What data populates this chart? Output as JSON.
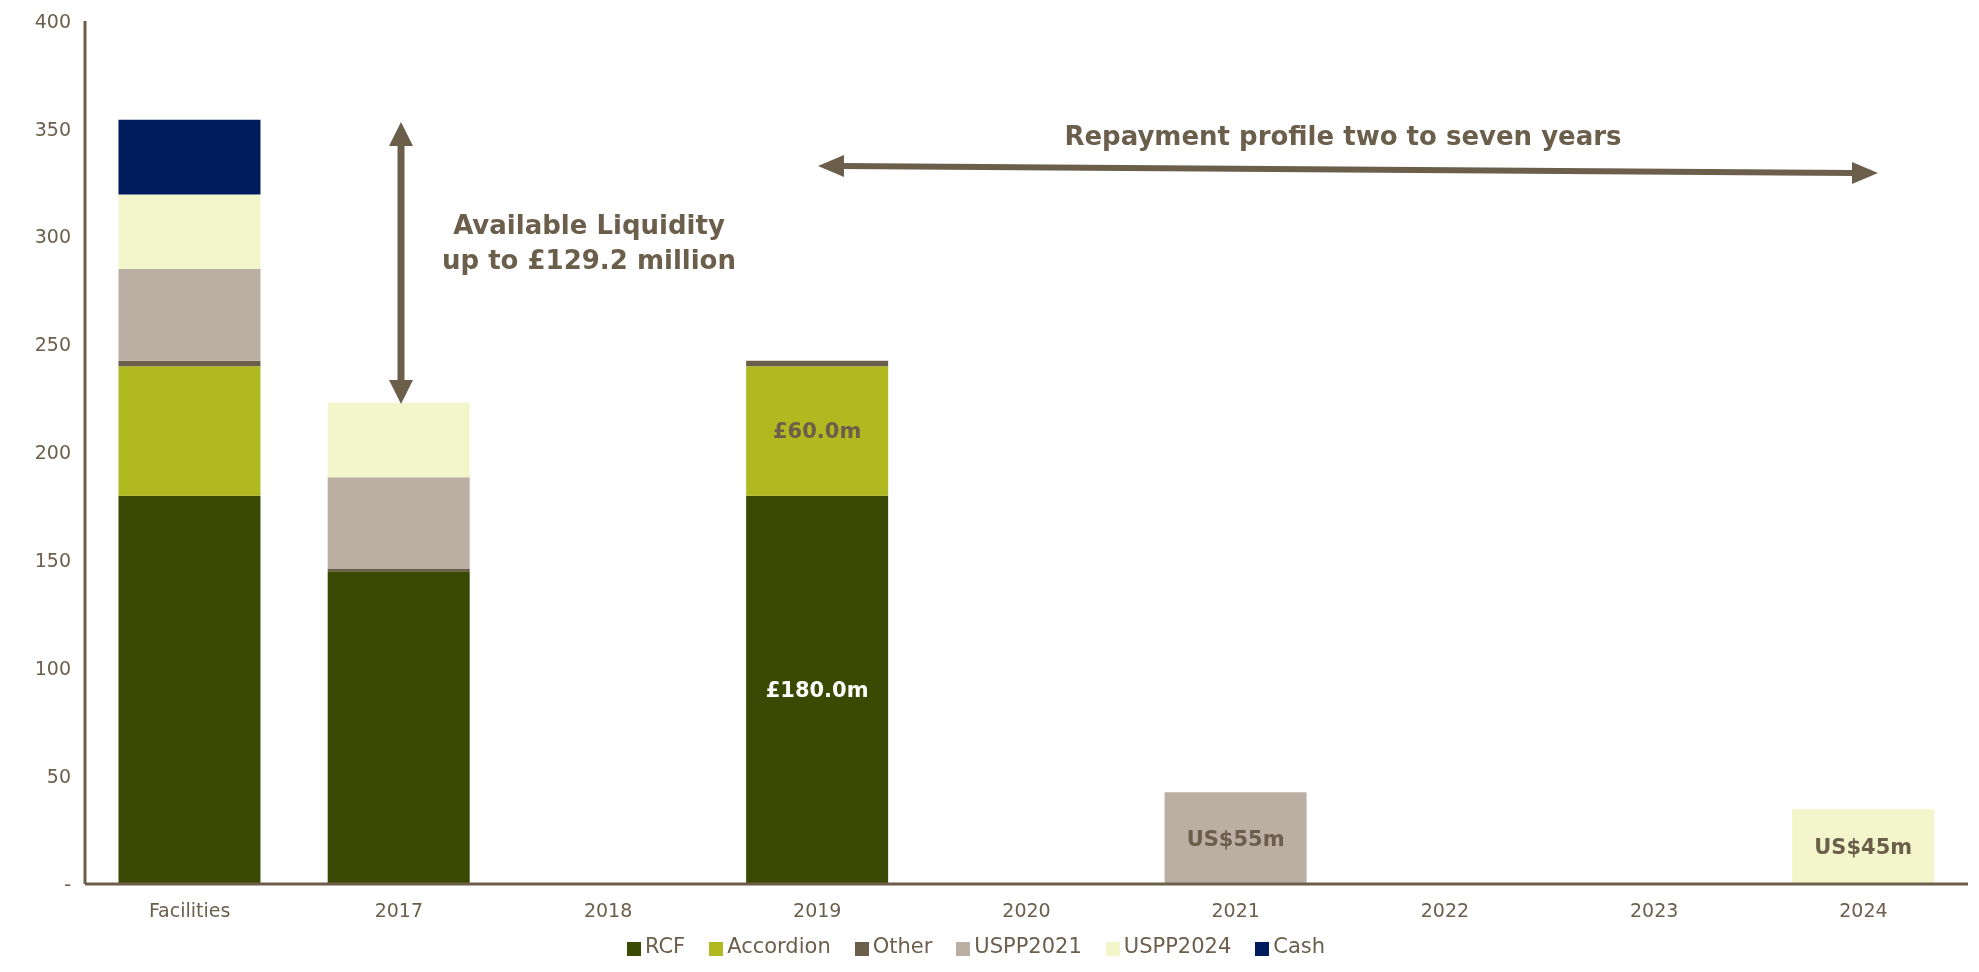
{
  "chart_data": {
    "type": "bar",
    "stacked": true,
    "categories": [
      "Facilities",
      "2017",
      "2018",
      "2019",
      "2020",
      "2021",
      "2022",
      "2023",
      "2024"
    ],
    "series": [
      {
        "name": "RCF",
        "color": "#3b4a02",
        "values": [
          180,
          145,
          null,
          180,
          null,
          null,
          null,
          null,
          null
        ],
        "value_labels": [
          null,
          null,
          null,
          "£180.0m",
          null,
          null,
          null,
          null,
          null
        ]
      },
      {
        "name": "Accordion",
        "color": "#b0b920",
        "values": [
          60,
          null,
          null,
          60,
          null,
          null,
          null,
          null,
          null
        ],
        "value_labels": [
          null,
          null,
          null,
          "£60.0m",
          null,
          null,
          null,
          null,
          null
        ]
      },
      {
        "name": "Other",
        "color": "#6b5e4b",
        "values": [
          2.5,
          1,
          null,
          2.5,
          null,
          null,
          null,
          null,
          null
        ]
      },
      {
        "name": "USPP2021",
        "color": "#bbafa3",
        "values": [
          42.5,
          42.5,
          null,
          null,
          null,
          42.5,
          null,
          null,
          null
        ],
        "value_labels": [
          null,
          null,
          null,
          null,
          null,
          "US$55m",
          null,
          null,
          null
        ]
      },
      {
        "name": "USPP2024",
        "color": "#f3f6cb",
        "values": [
          34.6,
          34.6,
          null,
          null,
          null,
          null,
          null,
          null,
          34.6
        ],
        "value_labels": [
          null,
          null,
          null,
          null,
          null,
          null,
          null,
          null,
          "US$45m"
        ]
      },
      {
        "name": "Cash",
        "color": "#001c5c",
        "values": [
          34.6,
          null,
          null,
          null,
          null,
          null,
          null,
          null,
          null
        ]
      }
    ],
    "ylim": [
      0,
      400
    ],
    "yticks": [
      {
        "value": 0,
        "label": "-"
      },
      50,
      100,
      150,
      200,
      250,
      300,
      350,
      400
    ],
    "grid": false,
    "legend": "bottom",
    "annotations": [
      "Available Liquidity\nup to £129.2 million",
      "Repayment profile two to seven years"
    ]
  }
}
